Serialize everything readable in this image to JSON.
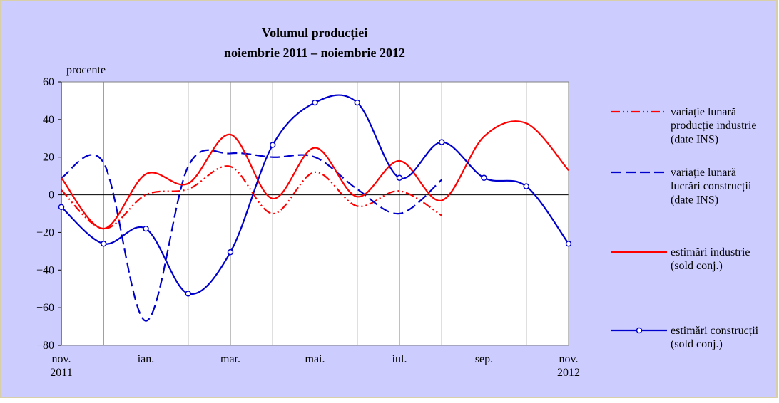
{
  "chart_data": {
    "type": "line",
    "title": "Volumul producției",
    "subtitle": "noiembrie 2011 – noiembrie 2012",
    "y_label": "procente",
    "categories": [
      "nov.\n2011",
      null,
      "ian.",
      null,
      "mar.",
      null,
      "mai.",
      null,
      "iul.",
      null,
      "sep.",
      null,
      "nov.\n2012"
    ],
    "ylim": [
      -80,
      60
    ],
    "yticks": [
      {
        "value": -80,
        "label": "−80"
      },
      {
        "value": -60,
        "label": "−60"
      },
      {
        "value": -40,
        "label": "−40"
      },
      {
        "value": -20,
        "label": "−20"
      },
      0,
      20,
      40,
      60
    ],
    "series": [
      {
        "name": "variație lunară\nproducție industrie\n(date INS)",
        "color": "#ff0000",
        "style": "dashdot",
        "values": [
          2.5,
          -18,
          0,
          3,
          15,
          -10,
          12,
          -6,
          2,
          -11,
          null,
          null,
          null
        ]
      },
      {
        "name": "variație lunară\nlucrări construcții\n(date INS)",
        "color": "#0000cc",
        "style": "dashed",
        "values": [
          9,
          17,
          -67,
          15,
          22,
          20,
          20,
          3,
          -10,
          8,
          null,
          null,
          null
        ]
      },
      {
        "name": "estimări industrie\n(sold conj.)",
        "color": "#ff0000",
        "style": "solid",
        "values": [
          9,
          -18,
          11,
          6,
          32,
          -2,
          25,
          -1,
          18,
          -3,
          31,
          38,
          13
        ]
      },
      {
        "name": "estimări construcții\n(sold conj.)",
        "color": "#0000cc",
        "style": "solid",
        "marker": "circle",
        "values": [
          -6.5,
          -26,
          -18,
          -52.5,
          -30.5,
          26.5,
          49,
          49,
          9,
          28,
          9,
          4.5,
          -26
        ]
      }
    ]
  }
}
